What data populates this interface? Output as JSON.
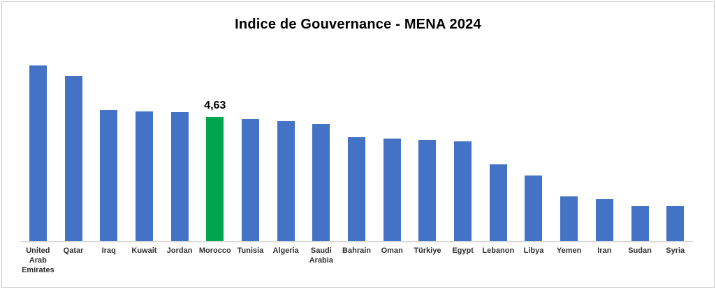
{
  "chart_data": {
    "type": "bar",
    "title": "Indice de Gouvernance - MENA 2024",
    "categories": [
      "United Arab Emirates",
      "Qatar",
      "Iraq",
      "Kuwait",
      "Jordan",
      "Morocco",
      "Tunisia",
      "Algeria",
      "Saudi Arabia",
      "Bahrain",
      "Oman",
      "Türkiye",
      "Egypt",
      "Lebanon",
      "Libya",
      "Yemen",
      "Iran",
      "Sudan",
      "Syria"
    ],
    "values": [
      6.56,
      6.17,
      4.89,
      4.84,
      4.81,
      4.63,
      4.55,
      4.47,
      4.37,
      3.88,
      3.82,
      3.77,
      3.72,
      2.86,
      2.45,
      1.67,
      1.56,
      1.3,
      1.31
    ],
    "highlight_index": 5,
    "data_labels": {
      "5": "4,63"
    },
    "bar_color": "#4472C4",
    "highlight_color": "#00A64F",
    "axis_line_color": "#D9D9D9",
    "xlabel": "",
    "ylabel": "",
    "ylim": [
      0,
      7
    ],
    "grid": false,
    "legend": false
  }
}
